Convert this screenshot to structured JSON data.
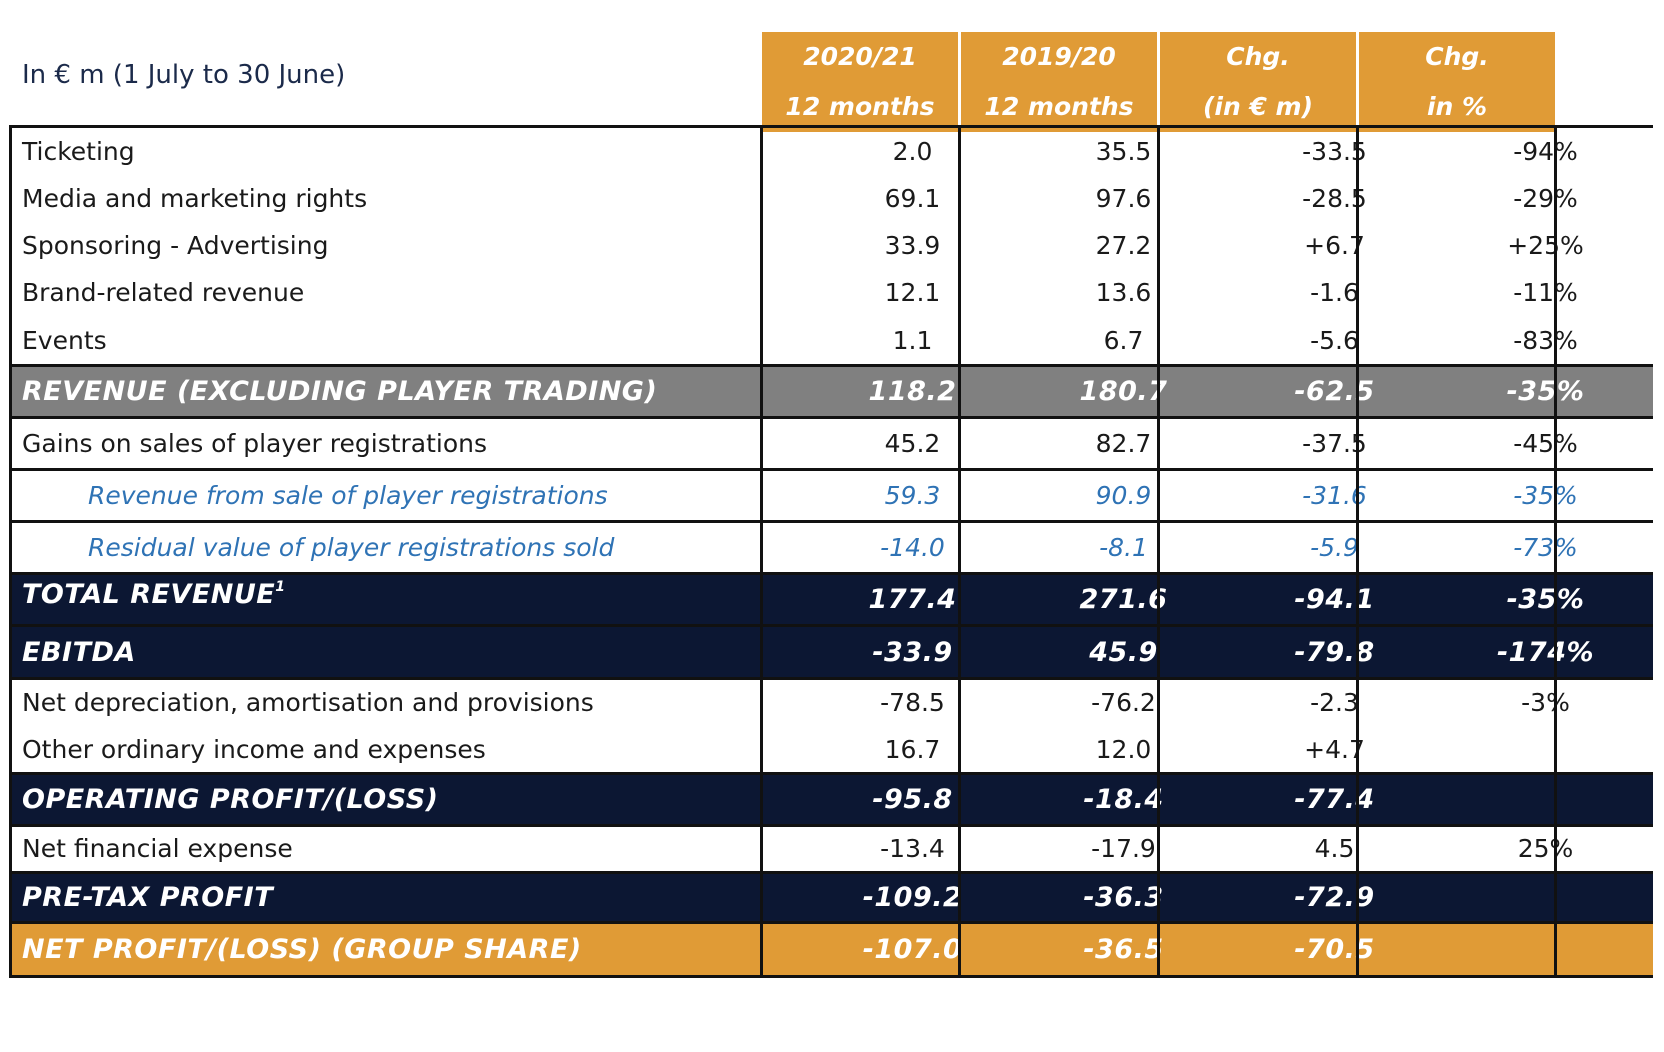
{
  "unit_label": "In € m (1 July to 30 June)",
  "columns": [
    {
      "line1": "2020/21",
      "line2": "12 months"
    },
    {
      "line1": "2019/20",
      "line2": "12 months"
    },
    {
      "line1": "Chg.",
      "line2": "(in € m)"
    },
    {
      "line1": "Chg.",
      "line2": "in %"
    }
  ],
  "rows": [
    {
      "label": "Ticketing",
      "values": [
        "2.0",
        "35.5",
        "-33.5",
        "-94%"
      ]
    },
    {
      "label": "Media and marketing rights",
      "values": [
        "69.1",
        "97.6",
        "-28.5",
        "-29%"
      ]
    },
    {
      "label": "Sponsoring - Advertising",
      "values": [
        "33.9",
        "27.2",
        "+6.7",
        "+25%"
      ]
    },
    {
      "label": "Brand-related revenue",
      "values": [
        "12.1",
        "13.6",
        "-1.6",
        "-11%"
      ]
    },
    {
      "label": "Events",
      "values": [
        "1.1",
        "6.7",
        "-5.6",
        "-83%"
      ]
    },
    {
      "label": "REVENUE (EXCLUDING PLAYER TRADING)",
      "values": [
        "118.2",
        "180.7",
        "-62.5",
        "-35%"
      ]
    },
    {
      "label": "Gains on sales of player registrations",
      "values": [
        "45.2",
        "82.7",
        "-37.5",
        "-45%"
      ]
    },
    {
      "label": "Revenue from sale of player registrations",
      "values": [
        "59.3",
        "90.9",
        "-31.6",
        "-35%"
      ]
    },
    {
      "label": "Residual value of player registrations sold",
      "values": [
        "-14.0",
        "-8.1",
        "-5.9",
        "-73%"
      ]
    },
    {
      "label": "TOTAL REVENUE",
      "footnote": "1",
      "values": [
        "177.4",
        "271.6",
        "-94.1",
        "-35%"
      ]
    },
    {
      "label": "EBITDA",
      "values": [
        "-33.9",
        "45.9",
        "-79.8",
        "-174%"
      ]
    },
    {
      "label": "Net depreciation, amortisation and provisions",
      "values": [
        "-78.5",
        "-76.2",
        "-2.3",
        "-3%"
      ]
    },
    {
      "label": "Other ordinary income and expenses",
      "values": [
        "16.7",
        "12.0",
        "+4.7",
        ""
      ]
    },
    {
      "label": "OPERATING PROFIT/(LOSS)",
      "values": [
        "-95.8",
        "-18.4",
        "-77.4",
        ""
      ]
    },
    {
      "label": "Net financial expense",
      "values": [
        "-13.4",
        "-17.9",
        "4.5",
        "25%"
      ]
    },
    {
      "label": "PRE-TAX PROFIT",
      "values": [
        "-109.2",
        "-36.3",
        "-72.9",
        ""
      ]
    },
    {
      "label": "NET PROFIT/(LOSS) (GROUP SHARE)",
      "values": [
        "-107.0",
        "-36.5",
        "-70.5",
        ""
      ]
    }
  ],
  "colors": {
    "header_orange": "#e09b36",
    "navy": "#0c1733",
    "gray": "#808080",
    "italic_blue": "#2f73b5"
  }
}
